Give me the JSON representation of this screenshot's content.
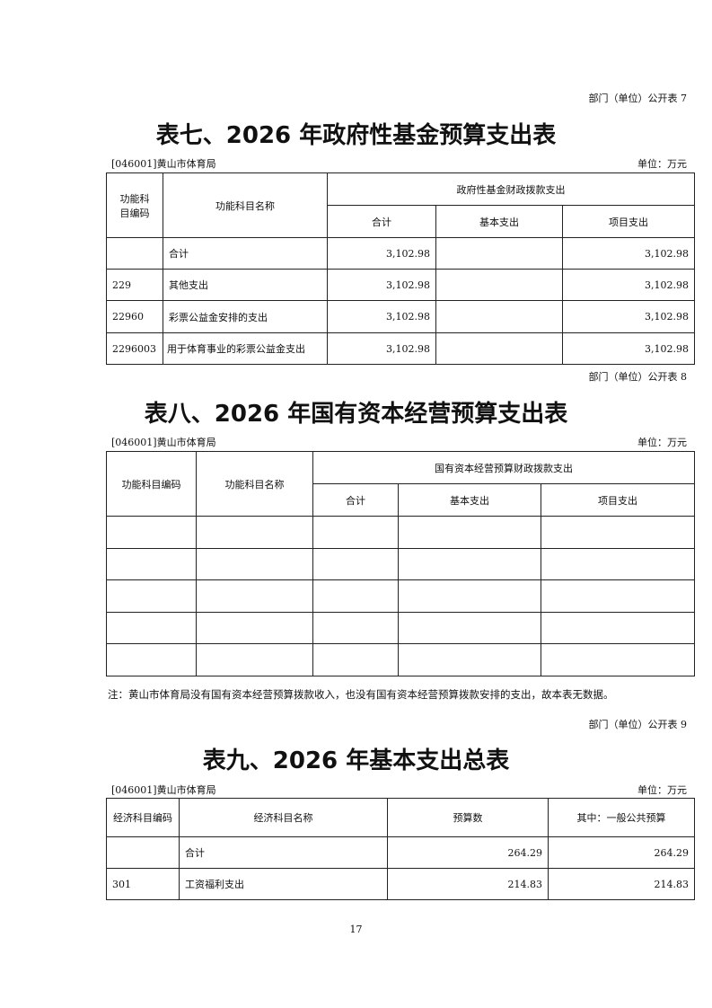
{
  "table7": {
    "tag": "部门（单位）公开表 7",
    "title": "表七、2026 年政府性基金预算支出表",
    "org": "[046001]黄山市体育局",
    "unit": "单位：万元",
    "headers": {
      "code": "功能科目编码",
      "name": "功能科目名称",
      "group": "政府性基金财政拨款支出",
      "total": "合计",
      "basic": "基本支出",
      "project": "项目支出"
    },
    "rows": [
      {
        "code": "",
        "name": "合计",
        "total": "3,102.98",
        "basic": "",
        "project": "3,102.98"
      },
      {
        "code": "229",
        "name": "其他支出",
        "total": "3,102.98",
        "basic": "",
        "project": "3,102.98"
      },
      {
        "code": "22960",
        "name": "彩票公益金安排的支出",
        "total": "3,102.98",
        "basic": "",
        "project": "3,102.98"
      },
      {
        "code": "2296003",
        "name": "用于体育事业的彩票公益金支出",
        "total": "3,102.98",
        "basic": "",
        "project": "3,102.98"
      }
    ]
  },
  "table8": {
    "tag": "部门（单位）公开表 8",
    "title": "表八、2026 年国有资本经营预算支出表",
    "org": "[046001]黄山市体育局",
    "unit": "单位：万元",
    "headers": {
      "code": "功能科目编码",
      "name": "功能科目名称",
      "group": "国有资本经营预算财政拨款支出",
      "total": "合计",
      "basic": "基本支出",
      "project": "项目支出"
    },
    "note": "注：黄山市体育局没有国有资本经营预算拨款收入，也没有国有资本经营预算拨款安排的支出，故本表无数据。"
  },
  "table9": {
    "tag": "部门（单位）公开表 9",
    "title": "表九、2026 年基本支出总表",
    "org": "[046001]黄山市体育局",
    "unit": "单位：万元",
    "headers": {
      "code": "经济科目编码",
      "name": "经济科目名称",
      "budget": "预算数",
      "general": "其中：一般公共预算"
    },
    "rows": [
      {
        "code": "",
        "name": "合计",
        "budget": "264.29",
        "general": "264.29"
      },
      {
        "code": "301",
        "name": "工资福利支出",
        "budget": "214.83",
        "general": "214.83"
      }
    ]
  },
  "page_number": "17"
}
